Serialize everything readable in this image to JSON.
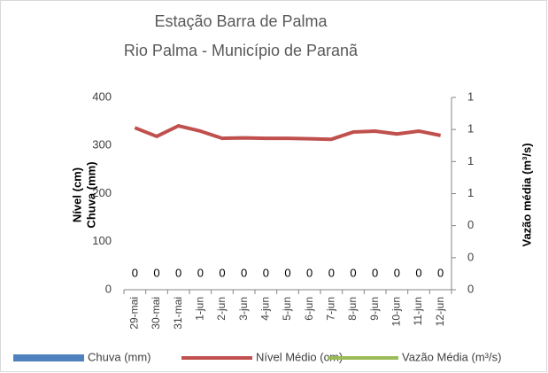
{
  "chart_data": {
    "type": "line",
    "title": [
      "Estação Barra de Palma",
      "Rio Palma - Município de Paranã"
    ],
    "y_label": [
      "Nível (cm)",
      "Chuva (mm)"
    ],
    "y2_label": "Vazão média (m³/s)",
    "categories": [
      "29-mai",
      "30-mai",
      "31-mai",
      "1-jun",
      "2-jun",
      "3-jun",
      "4-jun",
      "5-jun",
      "6-jun",
      "7-jun",
      "8-jun",
      "9-jun",
      "10-jun",
      "11-jun",
      "12-jun"
    ],
    "series": [
      {
        "name": "Chuva (mm)",
        "color": "#4f81bd",
        "kind": "bar",
        "values": [
          0,
          0,
          0,
          0,
          0,
          0,
          0,
          0,
          0,
          0,
          0,
          0,
          0,
          0,
          0
        ]
      },
      {
        "name": "Nível Médio (cm)",
        "color": "#c0504d",
        "kind": "line",
        "values": [
          337,
          319,
          341,
          330,
          315,
          316,
          315,
          315,
          314,
          313,
          328,
          330,
          324,
          330,
          321
        ]
      },
      {
        "name": "Vazão Média (m³/s)",
        "color": "#9bbb59",
        "kind": "line",
        "axis": "y2",
        "values": [
          null,
          null,
          null,
          null,
          null,
          null,
          null,
          null,
          null,
          null,
          null,
          null,
          null,
          null,
          null
        ]
      }
    ],
    "ylim": [
      0,
      400
    ],
    "yticks": [
      0,
      100,
      200,
      300,
      400
    ],
    "y2lim": [
      0,
      1.2
    ],
    "y2ticks": [
      0,
      {
        "value": 0.2,
        "label": "0"
      },
      {
        "value": 0.4,
        "label": "0"
      },
      {
        "value": 0.6,
        "label": "1"
      },
      {
        "value": 0.8,
        "label": "1"
      },
      1,
      {
        "value": 1.2,
        "label": "1"
      }
    ],
    "grid": false,
    "legend": "bottom"
  }
}
